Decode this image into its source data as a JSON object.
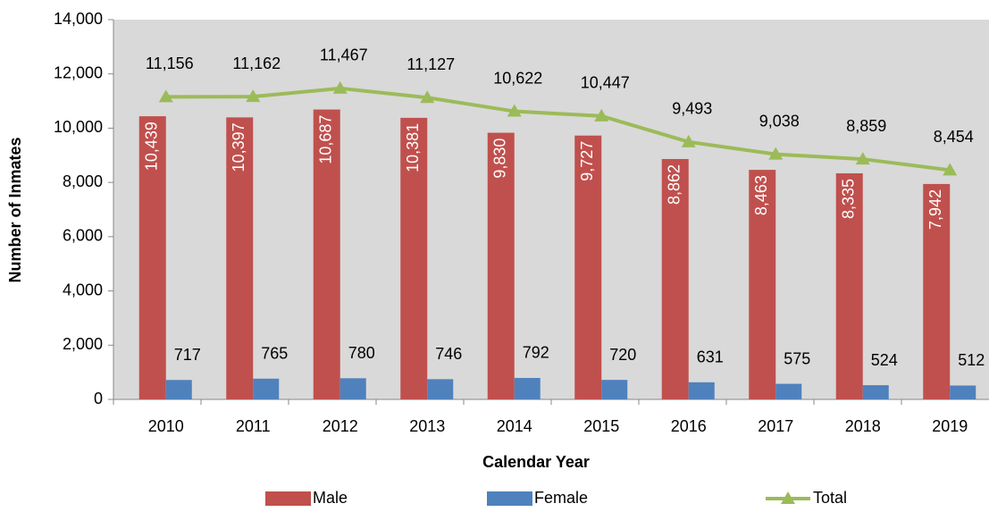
{
  "chart_data": {
    "type": "bar",
    "x_label": "Calendar Year",
    "y_label": "Number of Inmates",
    "categories": [
      "2010",
      "2011",
      "2012",
      "2013",
      "2014",
      "2015",
      "2016",
      "2017",
      "2018",
      "2019"
    ],
    "series": [
      {
        "name": "Male",
        "color": "#c0504d",
        "type": "bar",
        "values": [
          10439,
          10397,
          10687,
          10381,
          9830,
          9727,
          8862,
          8463,
          8335,
          7942
        ],
        "value_labels": [
          "10,439",
          "10,397",
          "10,687",
          "10,381",
          "9,830",
          "9,727",
          "8,862",
          "8,463",
          "8,335",
          "7,942"
        ]
      },
      {
        "name": "Female",
        "color": "#4f81bd",
        "type": "bar",
        "values": [
          717,
          765,
          780,
          746,
          792,
          720,
          631,
          575,
          524,
          512
        ]
      },
      {
        "name": "Total",
        "color": "#9bbb59",
        "type": "line",
        "values": [
          11156,
          11162,
          11467,
          11127,
          10622,
          10447,
          9493,
          9038,
          8859,
          8454
        ],
        "value_labels": [
          "11,156",
          "11,162",
          "11,467",
          "11,127",
          "10,622",
          "10,447",
          "9,493",
          "9,038",
          "8,859",
          "8,454"
        ]
      }
    ],
    "ylim": [
      0,
      14000
    ],
    "yticks": [
      0,
      {
        "value": 2000,
        "label": "2,000"
      },
      {
        "value": 4000,
        "label": "4,000"
      },
      {
        "value": 6000,
        "label": "6,000"
      },
      {
        "value": 8000,
        "label": "8,000"
      },
      {
        "value": 10000,
        "label": "10,000"
      },
      {
        "value": 12000,
        "label": "12,000"
      },
      {
        "value": 14000,
        "label": "14,000"
      }
    ],
    "legend": "bottom"
  }
}
